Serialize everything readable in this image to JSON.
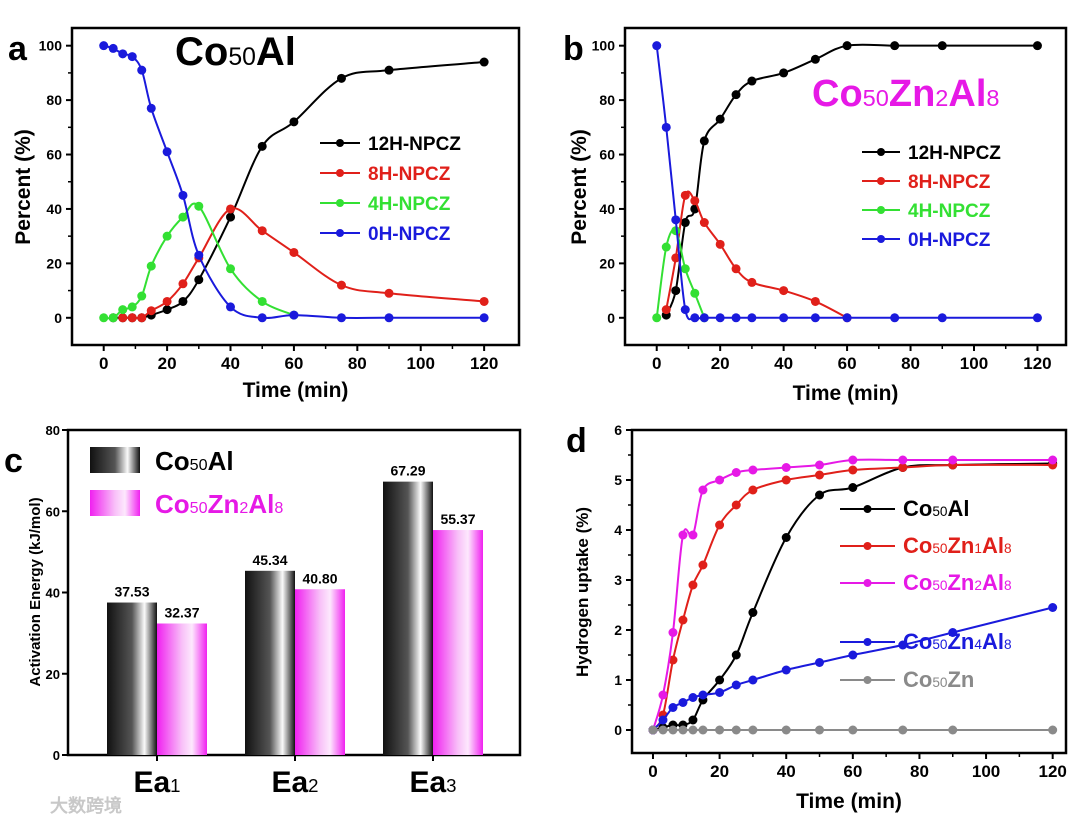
{
  "colors": {
    "black": "#000000",
    "red": "#e0201a",
    "green": "#33e033",
    "blue": "#1a1adc",
    "magenta": "#e619e6",
    "gray": "#8a8a8a"
  },
  "chart_data": [
    {
      "panel": "a",
      "type": "line",
      "title": "Co50Al",
      "xlabel": "Time (min)",
      "ylabel": "Percent (%)",
      "xlim": [
        -10,
        131
      ],
      "ylim": [
        -10,
        106.5
      ],
      "xticks": [
        0,
        20,
        40,
        60,
        80,
        100,
        120
      ],
      "yticks": [
        0,
        20,
        40,
        60,
        80,
        100
      ],
      "legend": "center-right",
      "series": [
        {
          "name": "12H-NPCZ",
          "color": "black",
          "x": [
            3,
            6,
            9,
            12,
            15,
            20,
            25,
            30,
            40,
            50,
            60,
            75,
            90,
            120
          ],
          "y": [
            0,
            0,
            0,
            0,
            1,
            3,
            6,
            14,
            37,
            63,
            72,
            88,
            91,
            94
          ]
        },
        {
          "name": "8H-NPCZ",
          "color": "red",
          "x": [
            6,
            9,
            12,
            15,
            20,
            25,
            30,
            40,
            50,
            60,
            75,
            90,
            120
          ],
          "y": [
            0,
            0,
            0,
            2.6,
            6,
            12.5,
            22,
            40,
            32,
            24,
            12,
            9,
            6
          ]
        },
        {
          "name": "4H-NPCZ",
          "color": "green",
          "x": [
            0,
            3,
            6,
            9,
            12,
            15,
            20,
            25,
            30,
            40,
            50,
            60
          ],
          "y": [
            0,
            0,
            3,
            4,
            8,
            19,
            30,
            37,
            41,
            18,
            6,
            1
          ]
        },
        {
          "name": "0H-NPCZ",
          "color": "blue",
          "x": [
            0,
            3,
            6,
            9,
            12,
            15,
            20,
            25,
            30,
            40,
            50,
            60,
            75,
            90,
            120
          ],
          "y": [
            100,
            99,
            97,
            96,
            91,
            77,
            61,
            45,
            23,
            4,
            0,
            1,
            0,
            0,
            0
          ]
        }
      ]
    },
    {
      "panel": "b",
      "type": "line",
      "title": "Co50Zn2Al8",
      "xlabel": "Time (min)",
      "ylabel": "Percent (%)",
      "xlim": [
        -10,
        129
      ],
      "ylim": [
        -10,
        106.5
      ],
      "xticks": [
        0,
        20,
        40,
        60,
        80,
        100,
        120
      ],
      "yticks": [
        0,
        20,
        40,
        60,
        80,
        100
      ],
      "legend": "center-right",
      "series": [
        {
          "name": "12H-NPCZ",
          "color": "black",
          "x": [
            3,
            6,
            9,
            12,
            15,
            20,
            25,
            30,
            40,
            50,
            60,
            75,
            90,
            120
          ],
          "y": [
            1,
            10,
            35,
            40,
            65,
            73,
            82,
            87,
            90,
            95,
            100,
            100,
            100,
            100
          ]
        },
        {
          "name": "8H-NPCZ",
          "color": "red",
          "x": [
            3,
            6,
            9,
            12,
            15,
            20,
            25,
            30,
            40,
            50,
            60
          ],
          "y": [
            3,
            22,
            45,
            43,
            35,
            27,
            18,
            13,
            10,
            6,
            0
          ]
        },
        {
          "name": "4H-NPCZ",
          "color": "green",
          "x": [
            0,
            3,
            6,
            9,
            12,
            15
          ],
          "y": [
            0,
            26,
            32,
            18,
            9,
            0
          ]
        },
        {
          "name": "0H-NPCZ",
          "color": "blue",
          "x": [
            0,
            3,
            6,
            9,
            12,
            15,
            20,
            25,
            30,
            40,
            50,
            60,
            75,
            90,
            120
          ],
          "y": [
            100,
            70,
            36,
            3,
            0,
            0,
            0,
            0,
            0,
            0,
            0,
            0,
            0,
            0,
            0
          ]
        }
      ]
    },
    {
      "panel": "c",
      "type": "bar",
      "xlabel": "",
      "ylabel": "Activation Energy (kJ/mol)",
      "ylim": [
        0,
        80
      ],
      "yticks": [
        0,
        20,
        40,
        60,
        80
      ],
      "categories": [
        "Ea1",
        "Ea2",
        "Ea3"
      ],
      "legend": "top-left",
      "series": [
        {
          "name": "Co50Al",
          "color": "black",
          "values": [
            37.53,
            45.34,
            67.29
          ],
          "labels": [
            "37.53",
            "45.34",
            "67.29"
          ]
        },
        {
          "name": "Co50Zn2Al8",
          "color": "magenta",
          "values": [
            32.37,
            40.8,
            55.37
          ],
          "labels": [
            "32.37",
            "40.80",
            "55.37"
          ]
        }
      ]
    },
    {
      "panel": "d",
      "type": "line",
      "xlabel": "Time (min)",
      "ylabel": "Hydrogen uptake (%)",
      "xlim": [
        -6.3,
        124
      ],
      "ylim": [
        -0.46,
        6
      ],
      "xticks": [
        0,
        20,
        40,
        60,
        80,
        100,
        120
      ],
      "yticks": [
        0,
        1,
        2,
        3,
        4,
        5,
        6
      ],
      "legend": "center-right",
      "series": [
        {
          "name": "Co50Al",
          "color": "black",
          "x": [
            0,
            3,
            6,
            9,
            12,
            15,
            20,
            25,
            30,
            40,
            50,
            60,
            75,
            90,
            120
          ],
          "y": [
            0,
            0.05,
            0.1,
            0.1,
            0.2,
            0.6,
            1.0,
            1.5,
            2.35,
            3.85,
            4.7,
            4.85,
            5.25,
            5.3,
            5.33
          ]
        },
        {
          "name": "Co50Zn1Al8",
          "color": "red",
          "x": [
            0,
            3,
            6,
            9,
            12,
            15,
            20,
            25,
            30,
            40,
            50,
            60,
            75,
            90,
            120
          ],
          "y": [
            0,
            0.3,
            1.4,
            2.2,
            2.9,
            3.3,
            4.1,
            4.5,
            4.8,
            5.0,
            5.1,
            5.2,
            5.25,
            5.3,
            5.3
          ]
        },
        {
          "name": "Co50Zn2Al8",
          "color": "magenta",
          "x": [
            0,
            3,
            6,
            9,
            12,
            15,
            20,
            25,
            30,
            40,
            50,
            60,
            75,
            90,
            120
          ],
          "y": [
            0,
            0.7,
            1.95,
            3.9,
            3.9,
            4.8,
            5.0,
            5.15,
            5.2,
            5.25,
            5.3,
            5.4,
            5.4,
            5.4,
            5.4
          ]
        },
        {
          "name": "Co50Zn4Al8",
          "color": "blue",
          "x": [
            0,
            3,
            6,
            9,
            12,
            15,
            20,
            25,
            30,
            40,
            50,
            60,
            75,
            90,
            120
          ],
          "y": [
            0,
            0.2,
            0.45,
            0.55,
            0.65,
            0.7,
            0.75,
            0.9,
            1.0,
            1.2,
            1.35,
            1.5,
            1.7,
            1.95,
            2.45
          ]
        },
        {
          "name": "Co50Zn",
          "color": "gray",
          "x": [
            0,
            3,
            6,
            9,
            12,
            15,
            20,
            25,
            30,
            40,
            50,
            60,
            75,
            90,
            120
          ],
          "y": [
            0,
            0,
            0,
            0,
            0,
            0,
            0,
            0,
            0,
            0,
            0,
            0,
            0,
            0,
            0
          ]
        }
      ]
    }
  ],
  "panel_letters": [
    "a",
    "b",
    "c",
    "d"
  ],
  "watermark": "大数跨境"
}
